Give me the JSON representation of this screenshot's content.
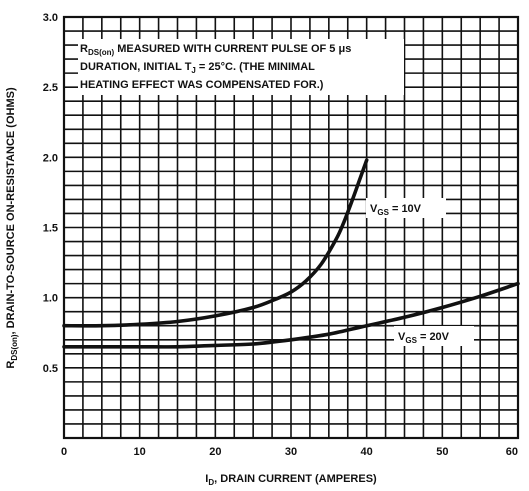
{
  "chart_data": {
    "type": "line",
    "ylabel_main": "R",
    "ylabel_sub": "DS(on)",
    "ylabel_rest": ", DRAIN-TO-SOURCE ON-RESISTANCE (OHMS)",
    "xlabel_main": "I",
    "xlabel_sub": "D",
    "xlabel_rest": ", DRAIN CURRENT (AMPERES)",
    "xlim": [
      0,
      60
    ],
    "ylim": [
      0,
      3.0
    ],
    "x_ticks": [
      0,
      10,
      20,
      30,
      40,
      50,
      60
    ],
    "x_tick_labels": [
      "0",
      "10",
      "20",
      "30",
      "40",
      "50",
      "60"
    ],
    "y_ticks": [
      0.5,
      1.0,
      1.5,
      2.0,
      2.5,
      3.0
    ],
    "y_tick_labels": [
      "0.5",
      "1.0",
      "1.5",
      "2.0",
      "2.5",
      "3.0"
    ],
    "grid": true,
    "annotation": {
      "line1_a": "R",
      "line1_sub": "DS(on)",
      "line1_b": " MEASURED WITH CURRENT PULSE OF 5 μs",
      "line2_a": "DURATION, INITIAL T",
      "line2_sub": "J",
      "line2_b": " = 25°C. (THE MINIMAL",
      "line3": "HEATING EFFECT WAS COMPENSATED FOR.)"
    },
    "series": [
      {
        "name_main": "V",
        "name_sub": "GS",
        "name_rest": " = 10V",
        "x": [
          0,
          5,
          10,
          15,
          20,
          25,
          28,
          30,
          32,
          34,
          36,
          37,
          38,
          39,
          40
        ],
        "y": [
          0.8,
          0.8,
          0.81,
          0.83,
          0.87,
          0.93,
          0.99,
          1.04,
          1.12,
          1.24,
          1.42,
          1.54,
          1.68,
          1.83,
          1.98
        ]
      },
      {
        "name_main": "V",
        "name_sub": "GS",
        "name_rest": " = 20V",
        "x": [
          0,
          5,
          10,
          15,
          20,
          25,
          30,
          35,
          40,
          45,
          50,
          55,
          60
        ],
        "y": [
          0.65,
          0.65,
          0.65,
          0.65,
          0.66,
          0.67,
          0.7,
          0.74,
          0.8,
          0.86,
          0.93,
          1.01,
          1.1
        ]
      }
    ]
  }
}
